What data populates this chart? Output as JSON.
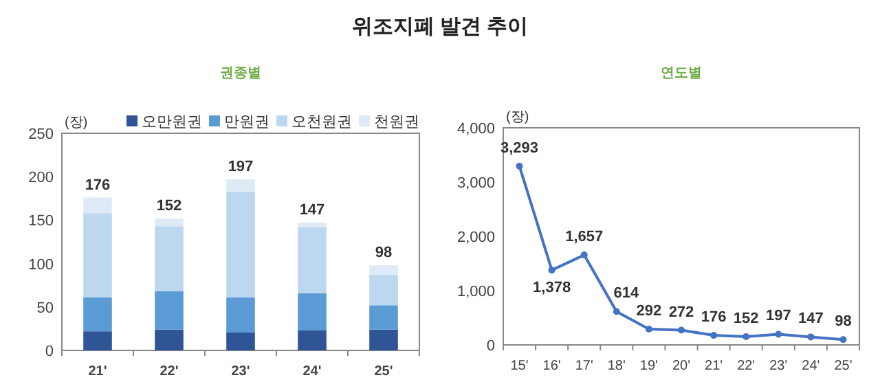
{
  "chart_data": [
    {
      "type": "bar",
      "title": "위조지폐 발견 추이",
      "subtitle": "권종별",
      "ylabel": "(장)",
      "categories": [
        "21'",
        "22'",
        "23'",
        "24'",
        "25'"
      ],
      "stacked": true,
      "series": [
        {
          "name": "오만원권",
          "color": "#2f5597",
          "values": [
            22,
            24,
            21,
            23,
            24
          ]
        },
        {
          "name": "만원권",
          "color": "#5b9bd5",
          "values": [
            39,
            44,
            40,
            43,
            28
          ]
        },
        {
          "name": "오천원권",
          "color": "#bdd7ee",
          "values": [
            97,
            75,
            122,
            76,
            35
          ]
        },
        {
          "name": "천원권",
          "color": "#deebf7",
          "values": [
            18,
            9,
            14,
            5,
            11
          ]
        }
      ],
      "totals": [
        "176",
        "152",
        "197",
        "147",
        "98"
      ],
      "ylim": [
        0,
        250
      ],
      "yticks": [
        0,
        50,
        100,
        150,
        200,
        250
      ],
      "legend": "top",
      "grid": false
    },
    {
      "type": "line",
      "subtitle": "연도별",
      "ylabel": "(장)",
      "categories": [
        "15'",
        "16'",
        "17'",
        "18'",
        "19'",
        "20'",
        "21'",
        "22'",
        "23'",
        "24'",
        "25'"
      ],
      "values": [
        3293,
        1378,
        1657,
        614,
        292,
        272,
        176,
        152,
        197,
        147,
        98
      ],
      "color": "#4472c4",
      "marker": "circle",
      "value_labels": [
        "3,293",
        "1,378",
        "1,657",
        "614",
        "292",
        "272",
        "176",
        "152",
        "197",
        "147",
        "98"
      ],
      "ylim": [
        0,
        4000
      ],
      "yticks": [
        0,
        {
          "value": 1000,
          "label": "1,000"
        },
        {
          "value": 2000,
          "label": "2,000"
        },
        {
          "value": 3000,
          "label": "3,000"
        },
        {
          "value": 4000,
          "label": "4,000"
        }
      ],
      "grid": false
    }
  ]
}
